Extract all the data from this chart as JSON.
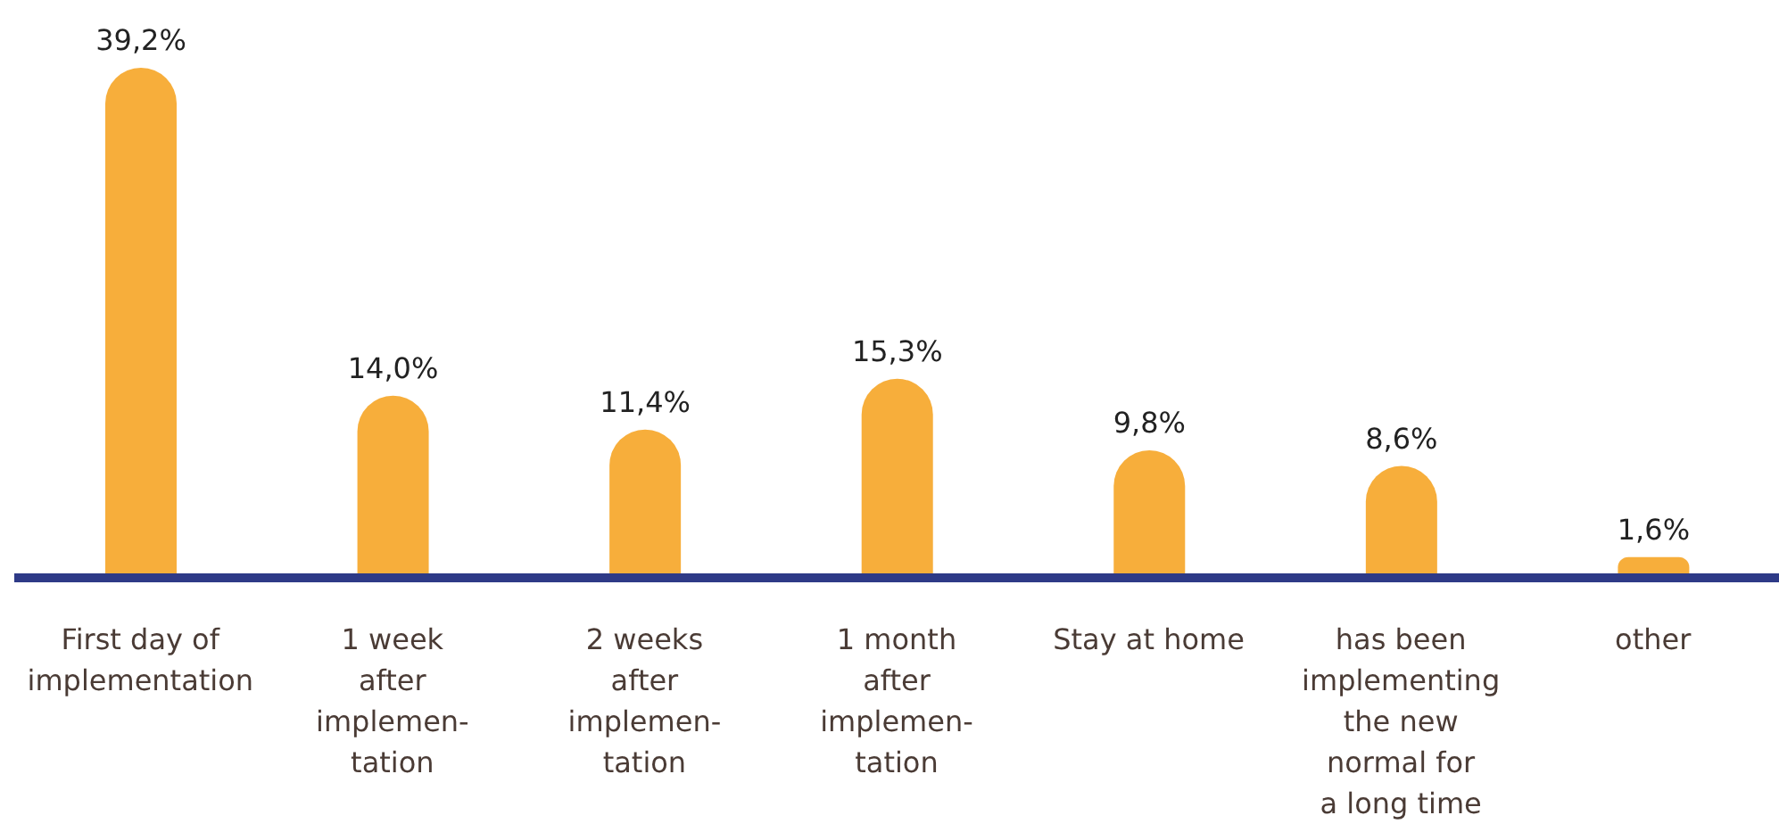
{
  "chart_data": {
    "type": "bar",
    "categories": [
      "First day of\nimplementation",
      "1 week\nafter\nimplemen-\ntation",
      "2 weeks\nafter\nimplemen-\ntation",
      "1 month\nafter\nimplemen-\ntation",
      "Stay at home",
      "has been\nimplementing\nthe new\nnormal for\na long time",
      "other"
    ],
    "values": [
      39.2,
      14.0,
      11.4,
      15.3,
      9.8,
      8.6,
      1.6
    ],
    "value_labels": [
      "39,2%",
      "14,0%",
      "11,4%",
      "15,3%",
      "9,8%",
      "8,6%",
      "1,6%"
    ],
    "color": "#f7ae3b",
    "legend": false,
    "grid": false
  }
}
